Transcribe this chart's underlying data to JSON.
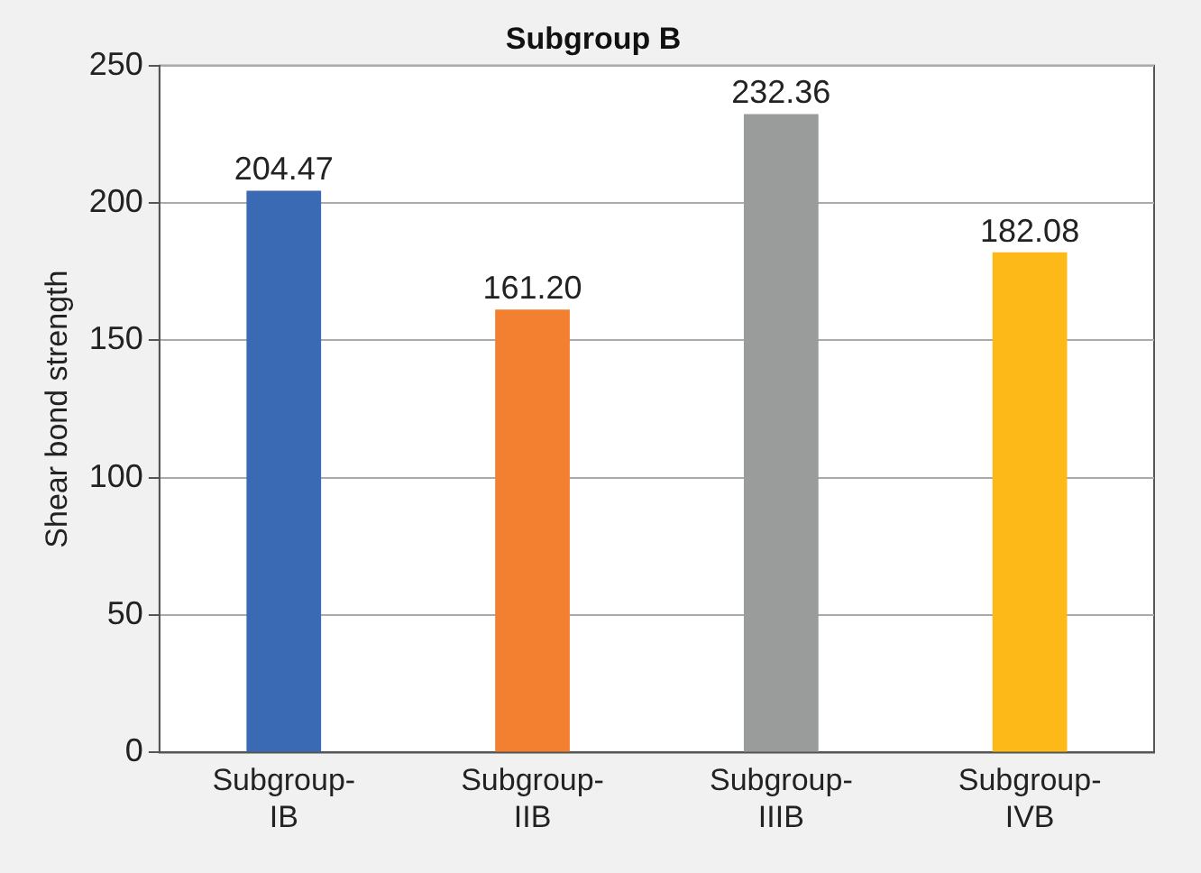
{
  "chart_data": {
    "type": "bar",
    "title": "Subgroup B",
    "ylabel": "Shear bond strength",
    "categories": [
      "Subgroup-IB",
      "Subgroup-IIB",
      "Subgroup-IIIB",
      "Subgroup-IVB"
    ],
    "values": [
      204.47,
      161.2,
      232.36,
      182.08
    ],
    "value_labels": [
      "204.47",
      "161.20",
      "232.36",
      "182.08"
    ],
    "colors": [
      "#3a6ab4",
      "#f28030",
      "#9a9b9b",
      "#fcb918"
    ],
    "ylim": [
      0,
      250
    ],
    "yticks": [
      0,
      50,
      100,
      150,
      200,
      250
    ],
    "grid": "y",
    "legend": false
  }
}
